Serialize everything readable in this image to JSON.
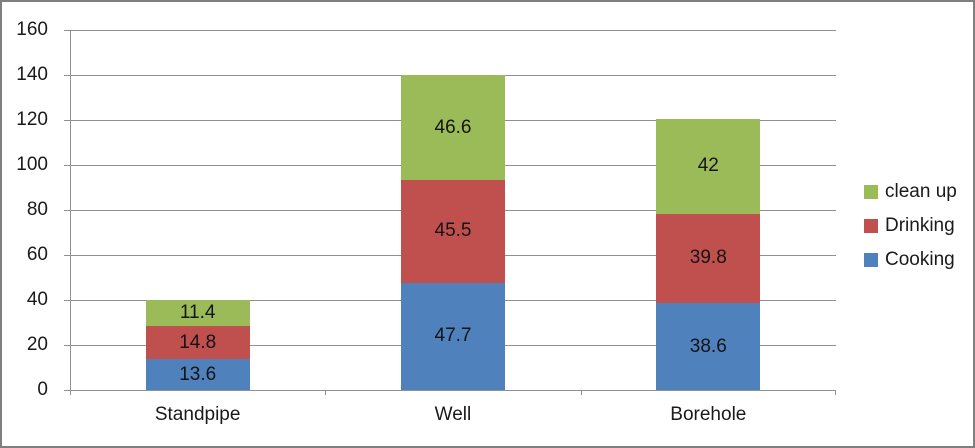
{
  "chart_data": {
    "type": "bar",
    "stacked": true,
    "title": "",
    "xlabel": "",
    "ylabel": "",
    "categories": [
      "Standpipe",
      "Well",
      "Borehole"
    ],
    "series": [
      {
        "name": "Cooking",
        "color": "#4F81BD",
        "values": [
          13.6,
          47.7,
          38.6
        ]
      },
      {
        "name": "Drinking",
        "color": "#C0504D",
        "values": [
          14.8,
          45.5,
          39.8
        ]
      },
      {
        "name": "clean up",
        "color": "#9BBB59",
        "values": [
          11.4,
          46.6,
          42
        ]
      }
    ],
    "data_labels": [
      "13.6",
      "14.8",
      "11.4",
      "47.7",
      "45.5",
      "46.6",
      "38.6",
      "39.8",
      "42"
    ],
    "ylim": [
      0,
      160
    ],
    "ytick_step": 20,
    "ytick_labels": [
      "0",
      "20",
      "40",
      "60",
      "80",
      "100",
      "120",
      "140",
      "160"
    ],
    "grid": true,
    "legend": {
      "position": "right",
      "entries": [
        {
          "label": "clean up",
          "color": "#9BBB59"
        },
        {
          "label": "Drinking",
          "color": "#C0504D"
        },
        {
          "label": "Cooking",
          "color": "#4F81BD"
        }
      ]
    }
  },
  "style": {
    "grid_color": "#909090",
    "axis_color": "#8c8c8c",
    "frame_color": "#7f7f7f",
    "background": "#ffffff",
    "label_color": "#1a1a1a"
  }
}
